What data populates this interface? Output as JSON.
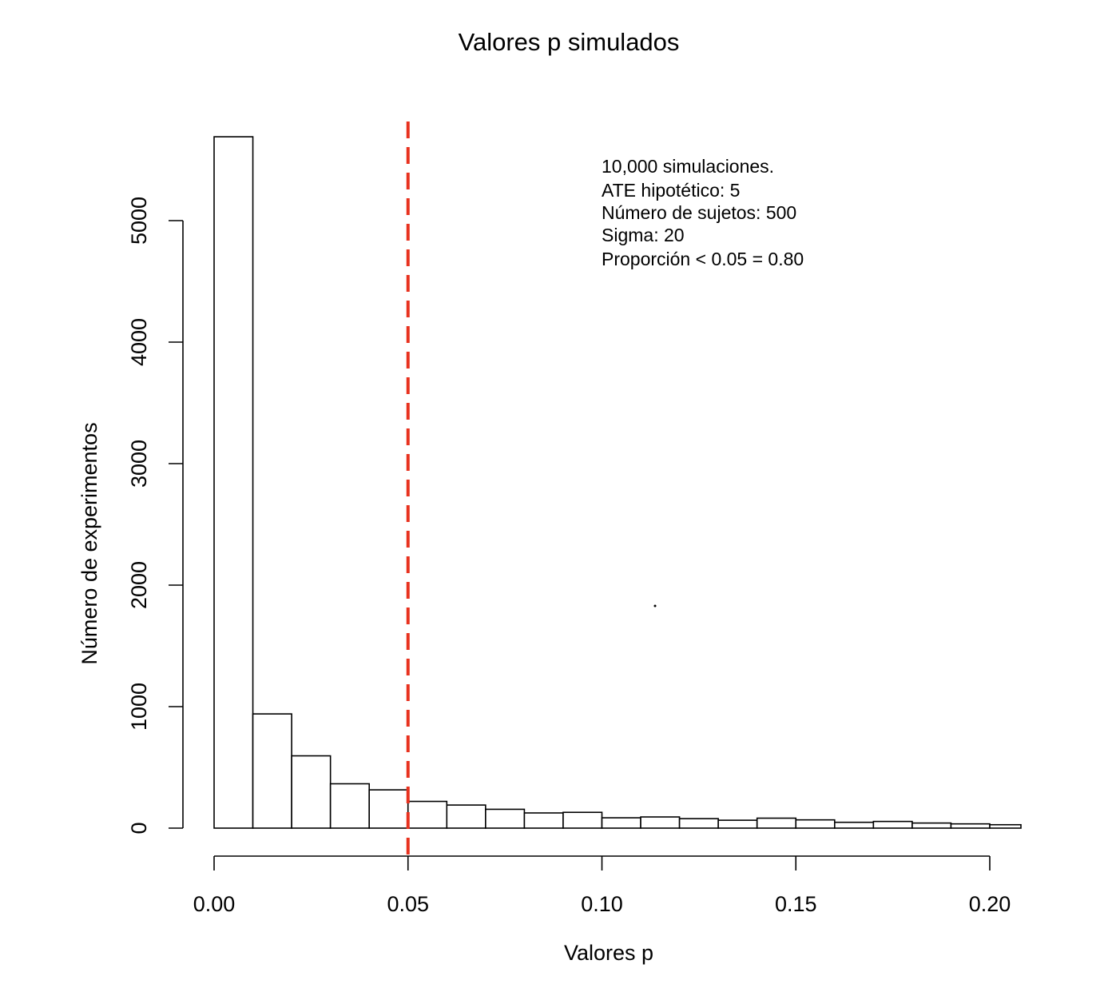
{
  "chart_data": {
    "type": "bar",
    "title": "Valores p simulados",
    "xlabel": "Valores p",
    "ylabel": "Número de experimentos",
    "bin_width": 0.01,
    "bins_start": 0.0,
    "values": [
      5690,
      940,
      595,
      365,
      315,
      220,
      190,
      155,
      125,
      130,
      85,
      92,
      78,
      65,
      82,
      68,
      48,
      55,
      42,
      35,
      28
    ],
    "xlim": [
      0.0,
      0.2
    ],
    "ylim": [
      0,
      5000
    ],
    "x_ticks": [
      "0.00",
      "0.05",
      "0.10",
      "0.15",
      "0.20"
    ],
    "y_ticks": [
      "0",
      "1000",
      "2000",
      "3000",
      "4000",
      "5000"
    ],
    "threshold": {
      "x": 0.05,
      "color": "#e8311e"
    },
    "annotations": [
      "10,000 simulaciones.",
      "ATE hipotético: 5",
      "Número de sujetos: 500",
      "Sigma: 20",
      "Proporción < 0.05 = 0.80"
    ],
    "grid": false,
    "legend": "none"
  }
}
